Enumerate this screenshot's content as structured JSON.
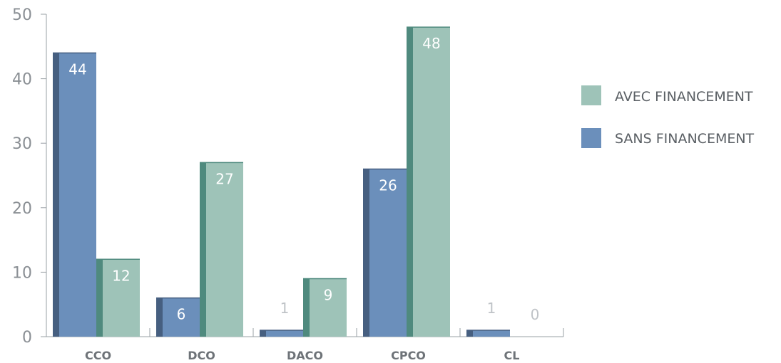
{
  "colors": {
    "sans_front": "#6b8fbb",
    "sans_side": "#465f80",
    "avec_front": "#9ec3b8",
    "avec_side": "#4f8a7e",
    "axis": "#9aa0a6",
    "label_light": "#bfc3c7"
  },
  "chart_data": {
    "type": "bar",
    "categories": [
      "CCO",
      "DCO",
      "DACO",
      "CPCO",
      "CL"
    ],
    "series": [
      {
        "name": "SANS FINANCEMENT",
        "values": [
          44,
          6,
          1,
          26,
          1
        ]
      },
      {
        "name": "AVEC FINANCEMENT",
        "values": [
          12,
          27,
          9,
          48,
          0
        ]
      }
    ],
    "ylim": [
      0,
      50
    ],
    "yticks": [
      "0",
      "10",
      "20",
      "30",
      "40",
      "50"
    ],
    "legend": {
      "position": "right",
      "entries": [
        "AVEC FINANCEMENT",
        "SANS FINANCEMENT"
      ]
    }
  }
}
